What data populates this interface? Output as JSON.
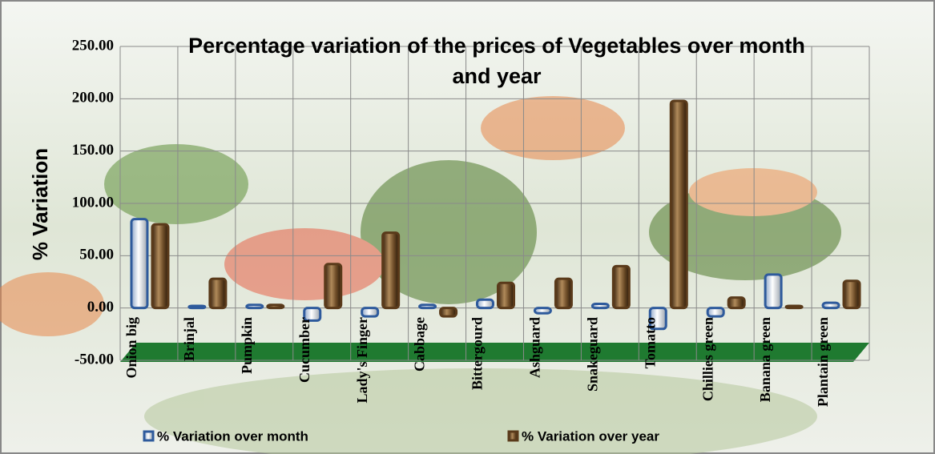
{
  "chart_data": {
    "type": "bar",
    "title": "Percentage variation of the prices of Vegetables over month and year",
    "y_axis_label": "% Variation",
    "categories": [
      "Onion big",
      "Brinjal",
      "Pumpkin",
      "Cucumber",
      "Lady's Finger",
      "Cabbage",
      "Bittergourd",
      "Ashguard",
      "Snakeguard",
      "Tomatto",
      "Chillies green",
      "Banana green",
      "Plantain green"
    ],
    "series": [
      {
        "name": "% Variation over month",
        "color": "#2e5a9c",
        "values": [
          85,
          2,
          3,
          -12,
          -8,
          3,
          8,
          -5,
          4,
          -20,
          -8,
          32,
          5
        ]
      },
      {
        "name": "% Variation over year",
        "color": "#5a3a1a",
        "values": [
          80,
          28,
          3,
          42,
          72,
          -8,
          24,
          28,
          40,
          198,
          10,
          2,
          26
        ]
      }
    ],
    "ylim": [
      -50,
      250
    ],
    "yticks": [
      {
        "value": -50,
        "label": "-50.00"
      },
      {
        "value": 0,
        "label": "0.00"
      },
      {
        "value": 50,
        "label": "50.00"
      },
      {
        "value": 100,
        "label": "100.00"
      },
      {
        "value": 150,
        "label": "150.00"
      },
      {
        "value": 200,
        "label": "200.00"
      },
      {
        "value": 250,
        "label": "250.00"
      }
    ],
    "grid": true,
    "legend": "bottom"
  }
}
